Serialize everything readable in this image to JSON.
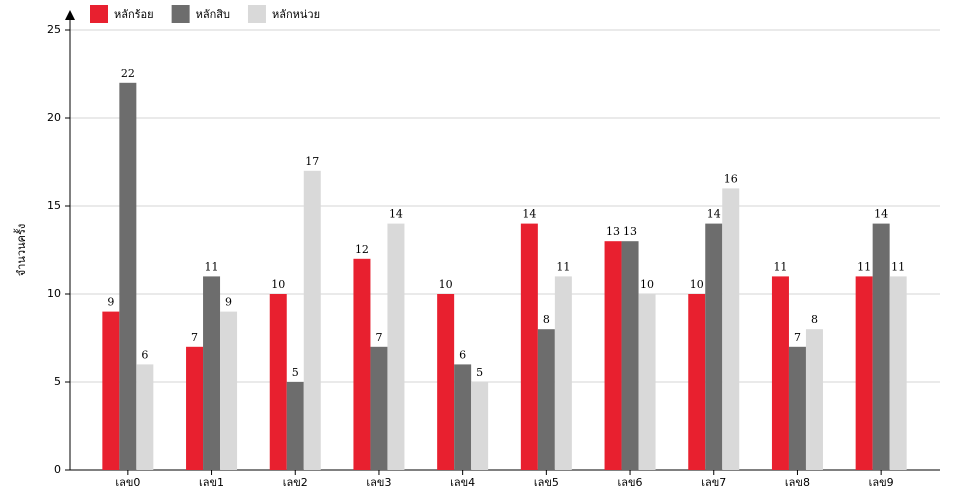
{
  "chart_data": {
    "type": "bar",
    "y_label": "จำนวนครั้ง",
    "categories": [
      "เลข0",
      "เลข1",
      "เลข2",
      "เลข3",
      "เลข4",
      "เลข5",
      "เลข6",
      "เลข7",
      "เลข8",
      "เลข9"
    ],
    "series": [
      {
        "name": "หลักร้อย",
        "color": "#e8202f",
        "values": [
          9,
          7,
          10,
          12,
          10,
          14,
          13,
          10,
          11,
          11
        ]
      },
      {
        "name": "หลักสิบ",
        "color": "#6d6d6d",
        "values": [
          22,
          11,
          5,
          7,
          6,
          8,
          13,
          14,
          7,
          14
        ]
      },
      {
        "name": "หลักหน่วย",
        "color": "#d9d9d9",
        "values": [
          6,
          9,
          17,
          14,
          5,
          11,
          10,
          16,
          8,
          11
        ]
      }
    ],
    "ylim": [
      0,
      25
    ],
    "yticks": [
      0,
      5,
      10,
      15,
      20,
      25
    ],
    "grid": true
  }
}
